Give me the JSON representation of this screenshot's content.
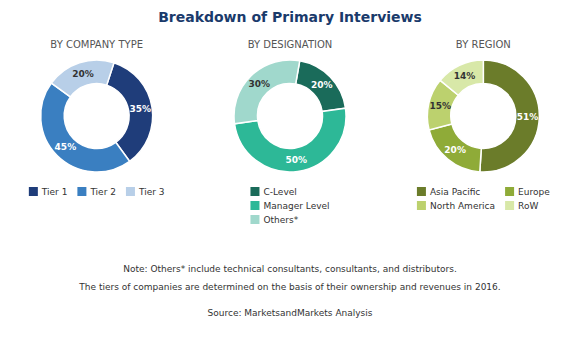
{
  "title": "Breakdown of Primary Interviews",
  "annotations": [
    "Note: Others* include technical consultants, consultants, and distributors.",
    "The tiers of companies are determined on the basis of their ownership and revenues in 2016.",
    "Source: MarketsandMarkets Analysis"
  ],
  "chart_data": [
    {
      "type": "donut",
      "subtitle": "BY COMPANY TYPE",
      "categories": [
        "Tier 1",
        "Tier 2",
        "Tier 3"
      ],
      "values": [
        35,
        45,
        20
      ],
      "value_labels": [
        "35%",
        "45%",
        "20%"
      ],
      "colors": [
        "#1f3d7a",
        "#3a7fc1",
        "#b8cfe8"
      ],
      "data_labels": true,
      "legend": "bottom"
    },
    {
      "type": "donut",
      "subtitle": "BY DESIGNATION",
      "categories": [
        "C-Level",
        "Manager Level",
        "Others*"
      ],
      "values": [
        20,
        50,
        30
      ],
      "value_labels": [
        "20%",
        "50%",
        "30%"
      ],
      "colors": [
        "#1a6b5a",
        "#2db897",
        "#a0d8cc"
      ],
      "data_labels": true,
      "legend": "bottom"
    },
    {
      "type": "donut",
      "subtitle": "BY REGION",
      "categories": [
        "Asia Pacific",
        "Europe",
        "North America",
        "RoW"
      ],
      "values": [
        51,
        20,
        15,
        14
      ],
      "value_labels": [
        "51%",
        "20%",
        "15%",
        "14%"
      ],
      "colors": [
        "#6b7c2a",
        "#8fab38",
        "#bcd16e",
        "#d8e8a8"
      ],
      "data_labels": true,
      "legend": "bottom"
    }
  ]
}
